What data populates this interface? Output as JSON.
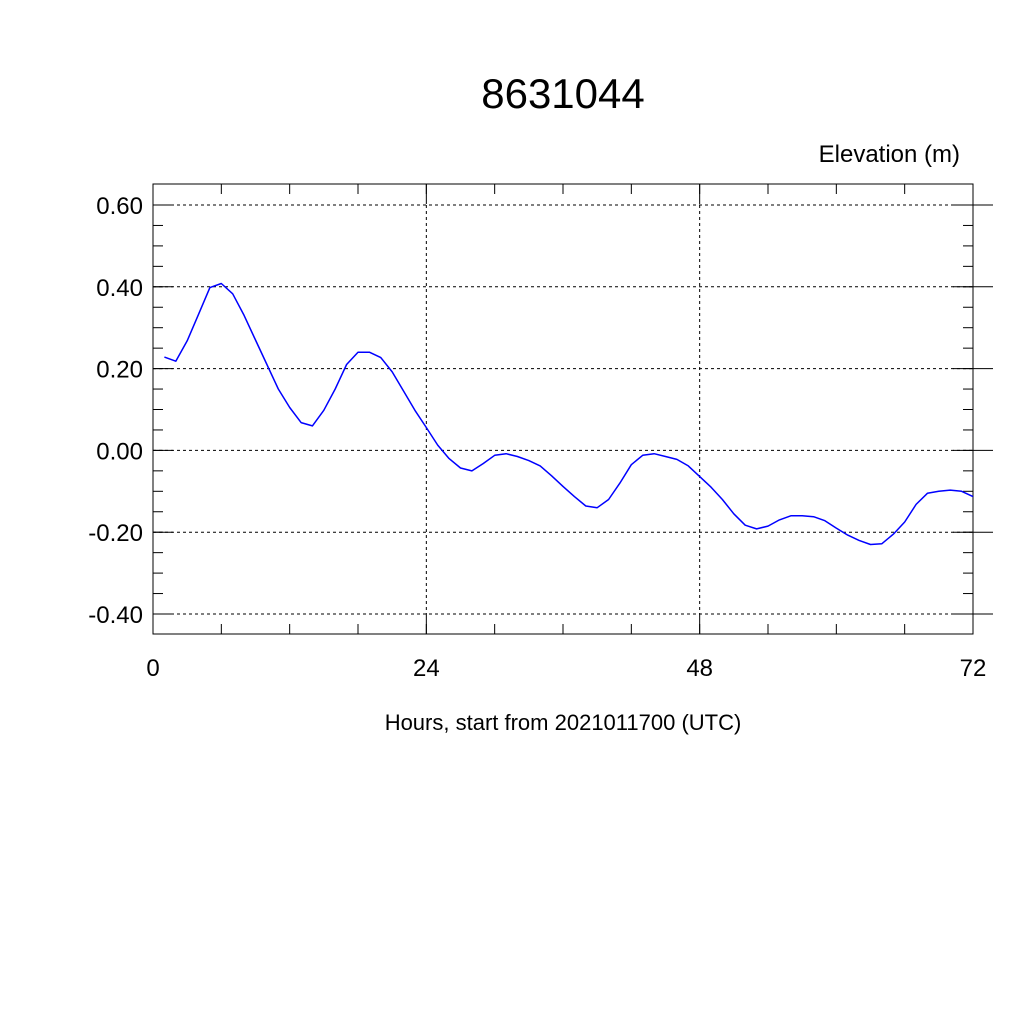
{
  "chart_data": {
    "type": "line",
    "title": "8631044",
    "ylabel": "Elevation (m)",
    "xlabel": "Hours, start from 2021011700 (UTC)",
    "xlim": [
      0,
      72
    ],
    "ylim": [
      -0.4,
      0.6
    ],
    "x_ticks": [
      0,
      24,
      48,
      72
    ],
    "x_tick_labels": [
      "0",
      "24",
      "48",
      "72"
    ],
    "y_ticks": [
      -0.4,
      -0.2,
      0.0,
      0.2,
      0.4,
      0.6
    ],
    "y_tick_labels": [
      "-0.40",
      "-0.20",
      "0.00",
      "0.20",
      "0.40",
      "0.60"
    ],
    "grid": true,
    "series": [
      {
        "color": "#0000ff",
        "x": [
          1,
          2,
          3,
          4,
          5,
          6,
          7,
          8,
          9,
          10,
          11,
          12,
          13,
          14,
          15,
          16,
          17,
          18,
          19,
          20,
          21,
          22,
          23,
          24,
          25,
          26,
          27,
          28,
          29,
          30,
          31,
          32,
          33,
          34,
          35,
          36,
          37,
          38,
          39,
          40,
          41,
          42,
          43,
          44,
          45,
          46,
          47,
          48,
          49,
          50,
          51,
          52,
          53,
          54,
          55,
          56,
          57,
          58,
          59,
          60,
          61,
          62,
          63,
          64,
          65,
          66,
          67,
          68,
          69,
          70,
          71,
          72
        ],
        "y": [
          0.228,
          0.218,
          0.268,
          0.333,
          0.398,
          0.408,
          0.383,
          0.33,
          0.27,
          0.21,
          0.15,
          0.105,
          0.068,
          0.06,
          0.098,
          0.15,
          0.21,
          0.24,
          0.24,
          0.227,
          0.192,
          0.145,
          0.098,
          0.056,
          0.013,
          -0.02,
          -0.043,
          -0.05,
          -0.032,
          -0.012,
          -0.008,
          -0.015,
          -0.025,
          -0.038,
          -0.062,
          -0.088,
          -0.113,
          -0.136,
          -0.14,
          -0.12,
          -0.08,
          -0.035,
          -0.012,
          -0.008,
          -0.015,
          -0.022,
          -0.038,
          -0.064,
          -0.09,
          -0.12,
          -0.155,
          -0.183,
          -0.192,
          -0.185,
          -0.17,
          -0.16,
          -0.16,
          -0.162,
          -0.172,
          -0.19,
          -0.207,
          -0.22,
          -0.23,
          -0.228,
          -0.205,
          -0.175,
          -0.132,
          -0.105,
          -0.1,
          -0.097,
          -0.1,
          -0.113
        ]
      }
    ]
  }
}
